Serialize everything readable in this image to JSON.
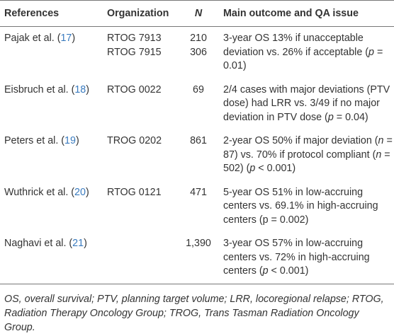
{
  "table": {
    "header": [
      "References",
      "Organization",
      "N",
      "Main outcome and QA issue"
    ],
    "rows": [
      {
        "reference": [
          "Pajak et al. (",
          "17",
          ")"
        ],
        "organization": [
          "RTOG 7913",
          "RTOG 7915"
        ],
        "n": [
          "210",
          "306"
        ],
        "outcome": [
          "3-year OS 13% if unacceptable deviation vs. 26% if acceptable (",
          "p",
          " = 0.01)"
        ]
      },
      {
        "reference": [
          "Eisbruch et al. (",
          "18",
          ")"
        ],
        "organization": [
          "RTOG 0022"
        ],
        "n": [
          "69"
        ],
        "outcome": [
          "2/4 cases with major deviations (PTV dose) had LRR vs. 3/49 if no major deviation in PTV dose (",
          "p",
          " = 0.04)"
        ]
      },
      {
        "reference": [
          "Peters et al. (",
          "19",
          ")"
        ],
        "organization": [
          "TROG 0202"
        ],
        "n": [
          "861"
        ],
        "outcome": [
          "2-year OS 50% if major deviation (",
          "n",
          " = 87) vs. 70% if protocol compliant (",
          "n",
          " = 502) (",
          "p",
          " < 0.001)"
        ]
      },
      {
        "reference": [
          "Wuthrick et al. (",
          "20",
          ")"
        ],
        "organization": [
          "RTOG 0121"
        ],
        "n": [
          "471"
        ],
        "outcome": [
          "5-year OS 51% in low-accruing centers vs. 69.1% in high-accruing centers (p = 0.002)"
        ]
      },
      {
        "reference": [
          "Naghavi et al. (",
          "21",
          ")"
        ],
        "organization": [],
        "n": [
          "1,390"
        ],
        "outcome": [
          "3-year OS 57% in low-accruing centers vs. 72% in high-accruing centers (",
          "p",
          " < 0.001)"
        ]
      }
    ]
  },
  "footnote": "OS, overall survival; PTV, planning target volume; LRR, locoregional relapse; RTOG, Radiation Therapy Oncology Group; TROG, Trans Tasman Radiation Oncology Group."
}
